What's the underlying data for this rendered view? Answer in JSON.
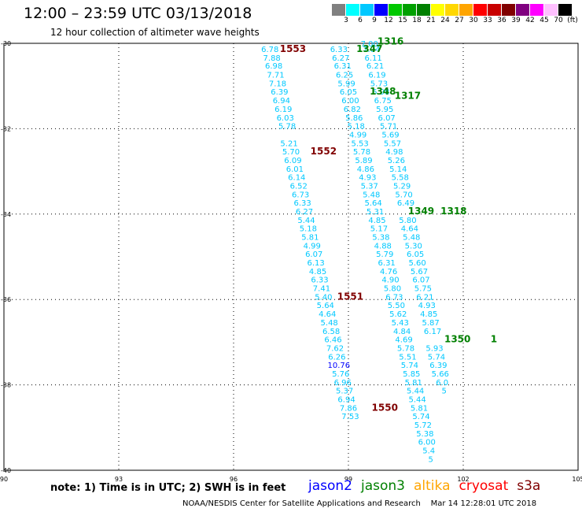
{
  "header": {
    "title": "12:00 – 23:59 UTC 03/13/2018",
    "subtitle": "12 hour collection of altimeter wave heights"
  },
  "color_scale": {
    "labels": [
      "3",
      "6",
      "9",
      "12",
      "15",
      "18",
      "21",
      "24",
      "27",
      "30",
      "33",
      "36",
      "39",
      "42",
      "45",
      "70",
      "(ft)"
    ],
    "colors": [
      "#808080",
      "#00ffff",
      "#00c8ff",
      "#0000ff",
      "#00c800",
      "#00a000",
      "#008000",
      "#ffff00",
      "#ffd700",
      "#ffa500",
      "#ff0000",
      "#c80000",
      "#800000",
      "#800080",
      "#ff00ff",
      "#ffc0ff",
      "#000000"
    ]
  },
  "map": {
    "lon_ticks": [
      "90",
      "93",
      "96",
      "99",
      "102",
      "105"
    ],
    "lat_ticks": [
      "-30",
      "-32",
      "-34",
      "-36",
      "-38",
      "-40"
    ]
  },
  "tracks": [
    {
      "color": "#00c8ff",
      "points": [
        [
          "6.78",
          -30.13,
          96.95
        ],
        [
          "7.88",
          -30.33,
          97.0
        ],
        [
          "6.98",
          -30.52,
          97.05
        ],
        [
          "7.71",
          -30.73,
          97.1
        ],
        [
          "7.18",
          -30.93,
          97.15
        ],
        [
          "6.39",
          -31.13,
          97.2
        ],
        [
          "6.94",
          -31.33,
          97.25
        ],
        [
          "6.19",
          -31.53,
          97.3
        ],
        [
          "6.03",
          -31.73,
          97.35
        ],
        [
          "5.78",
          -31.93,
          97.4
        ],
        [
          "5.21",
          -32.33,
          97.45
        ],
        [
          "5.70",
          -32.53,
          97.5
        ],
        [
          "6.09",
          -32.73,
          97.55
        ],
        [
          "6.01",
          -32.93,
          97.6
        ],
        [
          "6.14",
          -33.13,
          97.65
        ],
        [
          "6.52",
          -33.33,
          97.7
        ],
        [
          "6.73",
          -33.53,
          97.75
        ],
        [
          "6.33",
          -33.73,
          97.8
        ],
        [
          "6.27",
          -33.93,
          97.85
        ],
        [
          "5.44",
          -34.13,
          97.9
        ],
        [
          "5.18",
          -34.33,
          97.95
        ],
        [
          "5.81",
          -34.53,
          98.0
        ],
        [
          "4.99",
          -34.73,
          98.05
        ],
        [
          "6.07",
          -34.93,
          98.1
        ],
        [
          "6.13",
          -35.13,
          98.15
        ],
        [
          "4.85",
          -35.33,
          98.2
        ],
        [
          "6.33",
          -35.53,
          98.25
        ],
        [
          "7.41",
          -35.73,
          98.3
        ],
        [
          "5.40",
          -35.93,
          98.35
        ],
        [
          "5.64",
          -36.13,
          98.4
        ],
        [
          "4.64",
          -36.33,
          98.45
        ],
        [
          "5.48",
          -36.53,
          98.5
        ],
        [
          "6.58",
          -36.73,
          98.55
        ],
        [
          "6.46",
          -36.93,
          98.6
        ],
        [
          "7.62",
          -37.13,
          98.65
        ],
        [
          "6.26",
          -37.33,
          98.7
        ],
        [
          "10.76",
          -37.53,
          98.75
        ],
        [
          "5.76",
          -37.73,
          98.8
        ],
        [
          "6.96",
          -37.93,
          98.85
        ],
        [
          "5.37",
          -38.13,
          98.9
        ],
        [
          "6.94",
          -38.33,
          98.95
        ],
        [
          "7.86",
          -38.53,
          99.0
        ],
        [
          "7.53",
          -38.73,
          99.05
        ]
      ]
    },
    {
      "color": "#00c8ff",
      "points": [
        [
          "6.33",
          -30.13,
          98.75
        ],
        [
          "6.27",
          -30.33,
          98.8
        ],
        [
          "6.31",
          -30.52,
          98.85
        ],
        [
          "6.25",
          -30.73,
          98.9
        ],
        [
          "5.99",
          -30.93,
          98.95
        ],
        [
          "6.05",
          -31.13,
          99.0
        ],
        [
          "6.00",
          -31.33,
          99.05
        ],
        [
          "6.82",
          -31.53,
          99.1
        ],
        [
          "5.86",
          -31.73,
          99.15
        ],
        [
          "5.18",
          -31.93,
          99.2
        ],
        [
          "4.99",
          -32.13,
          99.25
        ],
        [
          "5.53",
          -32.33,
          99.3
        ],
        [
          "5.78",
          -32.53,
          99.35
        ],
        [
          "5.89",
          -32.73,
          99.4
        ],
        [
          "4.86",
          -32.93,
          99.45
        ],
        [
          "4.93",
          -33.13,
          99.5
        ],
        [
          "5.37",
          -33.33,
          99.55
        ],
        [
          "5.48",
          -33.53,
          99.6
        ],
        [
          "5.64",
          -33.73,
          99.65
        ],
        [
          "5.31",
          -33.93,
          99.7
        ],
        [
          "4.85",
          -34.13,
          99.75
        ],
        [
          "5.17",
          -34.33,
          99.8
        ],
        [
          "5.38",
          -34.53,
          99.85
        ],
        [
          "4.88",
          -34.73,
          99.9
        ],
        [
          "5.79",
          -34.93,
          99.95
        ],
        [
          "6.31",
          -35.13,
          100.0
        ],
        [
          "4.76",
          -35.33,
          100.05
        ],
        [
          "4.90",
          -35.53,
          100.1
        ],
        [
          "5.80",
          -35.73,
          100.15
        ],
        [
          "6.73",
          -35.93,
          100.2
        ],
        [
          "5.50",
          -36.13,
          100.25
        ],
        [
          "5.62",
          -36.33,
          100.3
        ],
        [
          "5.43",
          -36.53,
          100.35
        ],
        [
          "4.84",
          -36.73,
          100.4
        ],
        [
          "4.69",
          -36.93,
          100.45
        ],
        [
          "5.78",
          -37.13,
          100.5
        ],
        [
          "5.51",
          -37.33,
          100.55
        ],
        [
          "5.74",
          -37.53,
          100.6
        ],
        [
          "5.85",
          -37.73,
          100.65
        ],
        [
          "5.81",
          -37.93,
          100.7
        ],
        [
          "5.44",
          -38.13,
          100.75
        ],
        [
          "5.44",
          -38.33,
          100.8
        ],
        [
          "5.81",
          -38.53,
          100.85
        ],
        [
          "5.74",
          -38.73,
          100.9
        ],
        [
          "5.72",
          -38.93,
          100.95
        ],
        [
          "5.38",
          -39.13,
          101.0
        ],
        [
          "6.00",
          -39.33,
          101.05
        ],
        [
          "5.4",
          -39.53,
          101.1
        ],
        [
          "5",
          -39.73,
          101.15
        ]
      ]
    },
    {
      "color": "#00c8ff",
      "points": [
        [
          "7.00",
          -30.0,
          99.55
        ],
        [
          "7.04",
          -30.13,
          99.6
        ],
        [
          "6.11",
          -30.33,
          99.65
        ],
        [
          "6.21",
          -30.52,
          99.7
        ],
        [
          "6.19",
          -30.73,
          99.75
        ],
        [
          "5.73",
          -30.93,
          99.8
        ],
        [
          "5.98",
          -31.13,
          99.85
        ],
        [
          "6.75",
          -31.33,
          99.9
        ],
        [
          "5.95",
          -31.53,
          99.95
        ],
        [
          "6.07",
          -31.73,
          100.0
        ],
        [
          "5.71",
          -31.93,
          100.05
        ],
        [
          "5.69",
          -32.13,
          100.1
        ],
        [
          "5.57",
          -32.33,
          100.15
        ],
        [
          "4.98",
          -32.53,
          100.2
        ],
        [
          "5.26",
          -32.73,
          100.25
        ],
        [
          "5.14",
          -32.93,
          100.3
        ],
        [
          "5.58",
          -33.13,
          100.35
        ],
        [
          "5.29",
          -33.33,
          100.4
        ],
        [
          "5.70",
          -33.53,
          100.45
        ],
        [
          "6.49",
          -33.73,
          100.5
        ],
        [
          "5.80",
          -34.13,
          100.55
        ],
        [
          "4.64",
          -34.33,
          100.6
        ],
        [
          "5.48",
          -34.53,
          100.65
        ],
        [
          "5.30",
          -34.73,
          100.7
        ],
        [
          "6.05",
          -34.93,
          100.75
        ],
        [
          "5.60",
          -35.13,
          100.8
        ],
        [
          "5.67",
          -35.33,
          100.85
        ],
        [
          "6.07",
          -35.53,
          100.9
        ],
        [
          "5.75",
          -35.73,
          100.95
        ],
        [
          "6.21",
          -35.93,
          101.0
        ],
        [
          "4.93",
          -36.13,
          101.05
        ],
        [
          "4.85",
          -36.33,
          101.1
        ],
        [
          "5.87",
          -36.53,
          101.15
        ],
        [
          "6.17",
          -36.73,
          101.2
        ],
        [
          "5.93",
          -37.13,
          101.25
        ],
        [
          "5.74",
          -37.33,
          101.3
        ],
        [
          "6.39",
          -37.53,
          101.35
        ],
        [
          "5.66",
          -37.73,
          101.4
        ],
        [
          "6.0",
          -37.93,
          101.45
        ],
        [
          "5",
          -38.13,
          101.5
        ]
      ]
    }
  ],
  "time_labels": [
    {
      "text": "1553",
      "color": "#800000",
      "lat": -30.13,
      "lon": 97.55
    },
    {
      "text": "1552",
      "color": "#800000",
      "lat": -32.53,
      "lon": 98.35
    },
    {
      "text": "1551",
      "color": "#800000",
      "lat": -35.93,
      "lon": 99.05
    },
    {
      "text": "1550",
      "color": "#800000",
      "lat": -38.53,
      "lon": 99.95
    },
    {
      "text": "1316",
      "color": "#008000",
      "lat": -29.95,
      "lon": 100.1
    },
    {
      "text": "1347",
      "color": "#008000",
      "lat": -30.13,
      "lon": 99.55
    },
    {
      "text": "1348",
      "color": "#008000",
      "lat": -31.13,
      "lon": 99.9
    },
    {
      "text": "1317",
      "color": "#008000",
      "lat": -31.23,
      "lon": 100.55
    },
    {
      "text": "1349",
      "color": "#008000",
      "lat": -33.93,
      "lon": 100.9
    },
    {
      "text": "1318",
      "color": "#008000",
      "lat": -33.93,
      "lon": 101.75
    },
    {
      "text": "1350",
      "color": "#008000",
      "lat": -36.93,
      "lon": 101.85
    },
    {
      "text": "1",
      "color": "#008000",
      "lat": -36.93,
      "lon": 102.8
    }
  ],
  "note": "note:  1) Time is in UTC;  2) SWH is in feet",
  "legend": [
    {
      "label": "jason2",
      "color": "#0000ff"
    },
    {
      "label": "jason3",
      "color": "#008000"
    },
    {
      "label": "altika",
      "color": "#ffa500"
    },
    {
      "label": "cryosat",
      "color": "#ff0000"
    },
    {
      "label": "s3a",
      "color": "#800000"
    }
  ],
  "footer": "NOAA/NESDIS Center for Satellite Applications and Research    Mar 14 12:28:01 UTC 2018"
}
